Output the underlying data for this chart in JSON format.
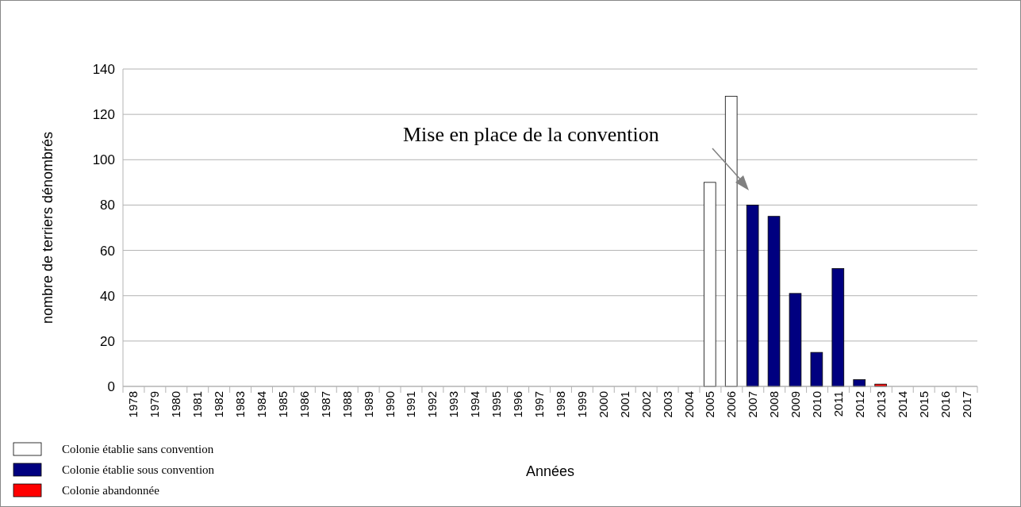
{
  "chart_data": {
    "type": "bar",
    "stacked": true,
    "ylabel": "nombre de terriers dénombrés",
    "xlabel": "Années",
    "categories": [
      "1978",
      "1979",
      "1980",
      "1981",
      "1982",
      "1983",
      "1984",
      "1985",
      "1986",
      "1987",
      "1988",
      "1989",
      "1990",
      "1991",
      "1992",
      "1993",
      "1994",
      "1995",
      "1996",
      "1997",
      "1998",
      "1999",
      "2000",
      "2001",
      "2002",
      "2003",
      "2004",
      "2005",
      "2006",
      "2007",
      "2008",
      "2009",
      "2010",
      "2011",
      "2012",
      "2013",
      "2014",
      "2015",
      "2016",
      "2017"
    ],
    "series": [
      {
        "name": "Colonie établie sans convention",
        "color": "#ffffff",
        "values": [
          null,
          null,
          null,
          null,
          null,
          null,
          null,
          null,
          null,
          null,
          null,
          null,
          null,
          null,
          null,
          null,
          null,
          null,
          null,
          null,
          null,
          null,
          null,
          null,
          null,
          null,
          null,
          90,
          128,
          null,
          null,
          null,
          null,
          null,
          null,
          null,
          null,
          null,
          null,
          null
        ]
      },
      {
        "name": "Colonie établie sous convention",
        "color": "#000080",
        "values": [
          null,
          null,
          null,
          null,
          null,
          null,
          null,
          null,
          null,
          null,
          null,
          null,
          null,
          null,
          null,
          null,
          null,
          null,
          null,
          null,
          null,
          null,
          null,
          null,
          null,
          null,
          null,
          null,
          null,
          80,
          75,
          41,
          15,
          52,
          3,
          null,
          null,
          null,
          null,
          null
        ]
      },
      {
        "name": "Colonie abandonnée",
        "color": "#ff0000",
        "values": [
          null,
          null,
          null,
          null,
          null,
          null,
          null,
          null,
          null,
          null,
          null,
          null,
          null,
          null,
          null,
          null,
          null,
          null,
          null,
          null,
          null,
          null,
          null,
          null,
          null,
          null,
          null,
          null,
          null,
          null,
          null,
          null,
          null,
          null,
          null,
          1,
          null,
          null,
          null,
          null
        ]
      }
    ],
    "ylim": [
      0,
      140
    ],
    "yticks": [
      0,
      20,
      40,
      60,
      80,
      100,
      120,
      140
    ],
    "grid": "y",
    "legend": "bottom left",
    "annotations": [
      "Mise en place de la convention"
    ]
  }
}
